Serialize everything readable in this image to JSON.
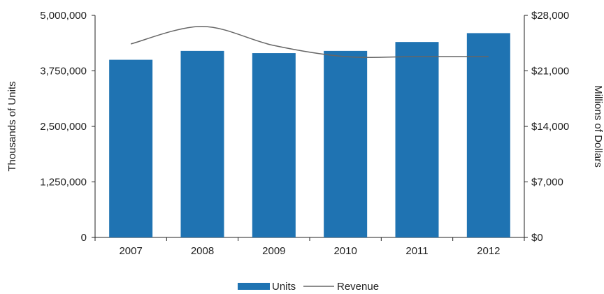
{
  "chart_data": {
    "type": "bar",
    "categories": [
      "2007",
      "2008",
      "2009",
      "2010",
      "2011",
      "2012"
    ],
    "series": [
      {
        "name": "Units",
        "kind": "bar",
        "axis": "left",
        "color": "#1f73b2",
        "values": [
          4000000,
          4200000,
          4150000,
          4200000,
          4400000,
          4600000
        ]
      },
      {
        "name": "Revenue",
        "kind": "line",
        "axis": "right",
        "color": "#666666",
        "values": [
          24400,
          26600,
          24200,
          22800,
          22800,
          22800
        ]
      }
    ],
    "ylabel": "Thousands of Units",
    "y2label": "Millions of Dollars",
    "ylim": [
      0,
      5000000
    ],
    "y2lim": [
      0,
      28000
    ],
    "yticks": [
      "0",
      "1,250,000",
      "2,500,000",
      "3,750,000",
      "5,000,000"
    ],
    "y2ticks": [
      "$0",
      "$7,000",
      "$14,000",
      "$21,000",
      "$28,000"
    ],
    "grid": false,
    "legend": "bottom-center"
  }
}
